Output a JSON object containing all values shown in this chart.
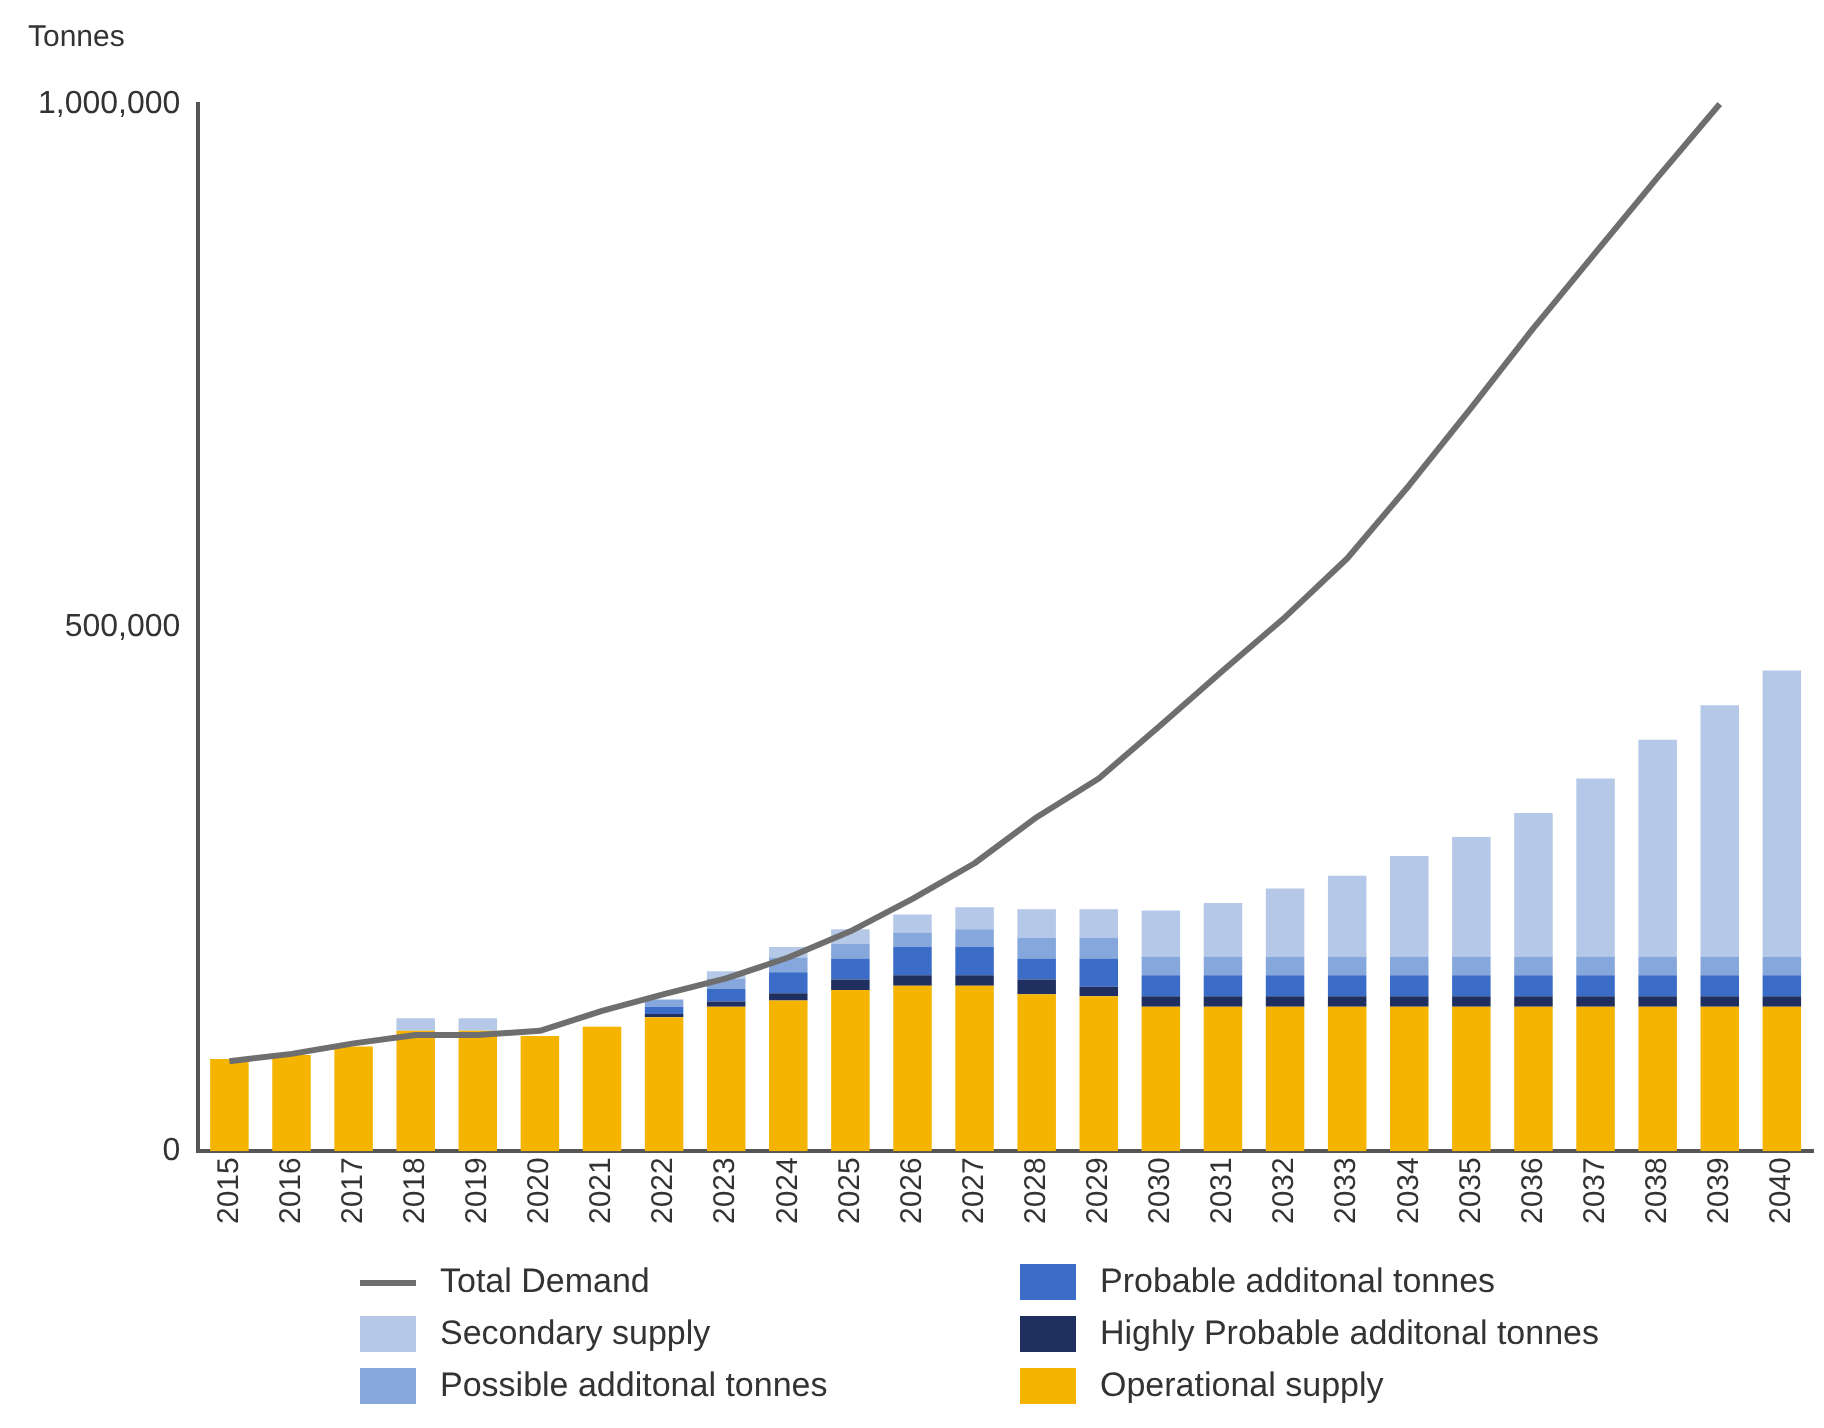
{
  "chart_data": {
    "type": "bar",
    "stacked": true,
    "ylabel": "Tonnes",
    "categories": [
      "2015",
      "2016",
      "2017",
      "2018",
      "2019",
      "2020",
      "2021",
      "2022",
      "2023",
      "2024",
      "2025",
      "2026",
      "2027",
      "2028",
      "2029",
      "2030",
      "2031",
      "2032",
      "2033",
      "2034",
      "2035",
      "2036",
      "2037",
      "2038",
      "2039",
      "2040"
    ],
    "series": [
      {
        "name": "Operational supply",
        "color": "#f5b400",
        "values": [
          88000,
          92000,
          100000,
          115000,
          115000,
          110000,
          119000,
          128000,
          138000,
          144000,
          154000,
          158000,
          158000,
          150000,
          148000,
          138000,
          138000,
          138000,
          138000,
          138000,
          138000,
          138000,
          138000,
          138000,
          138000,
          138000
        ]
      },
      {
        "name": "Highly Probable additonal tonnes",
        "color": "#1f3060",
        "values": [
          0,
          0,
          0,
          0,
          0,
          0,
          0,
          3000,
          5000,
          7000,
          10000,
          10000,
          10000,
          14000,
          9000,
          10000,
          10000,
          10000,
          10000,
          10000,
          10000,
          10000,
          10000,
          10000,
          10000,
          10000
        ]
      },
      {
        "name": "Probable additonal tonnes",
        "color": "#3a6cc8",
        "values": [
          0,
          0,
          0,
          0,
          0,
          0,
          0,
          7000,
          12000,
          20000,
          20000,
          27000,
          27000,
          20000,
          27000,
          20000,
          20000,
          20000,
          20000,
          20000,
          20000,
          20000,
          20000,
          20000,
          20000,
          20000
        ]
      },
      {
        "name": "Possible additonal tonnes",
        "color": "#86a7dc",
        "values": [
          0,
          0,
          0,
          0,
          0,
          0,
          0,
          7000,
          10000,
          14000,
          14000,
          14000,
          17000,
          20000,
          20000,
          18000,
          18000,
          18000,
          18000,
          18000,
          18000,
          18000,
          18000,
          18000,
          18000,
          18000
        ]
      },
      {
        "name": "Secondary supply",
        "color": "#b5c8e8",
        "values": [
          0,
          0,
          0,
          12000,
          12000,
          0,
          null,
          null,
          7000,
          10000,
          14000,
          17000,
          21000,
          27000,
          27000,
          44000,
          51000,
          65000,
          77000,
          96000,
          114000,
          137000,
          170000,
          207000,
          240000,
          273000
        ]
      },
      {
        "name": "Total Demand",
        "type": "line",
        "color": "#6e6e6e",
        "values": [
          86000,
          93000,
          103000,
          111000,
          111000,
          115000,
          134000,
          150000,
          165000,
          185000,
          210000,
          241000,
          275000,
          319000,
          356000,
          407000,
          459000,
          510000,
          566000,
          636000,
          710000,
          786000,
          858000,
          930000,
          1000000,
          null
        ]
      }
    ],
    "ylim": [
      0,
      1000000
    ],
    "yticks": [
      {
        "value": 0,
        "label": "0"
      },
      {
        "value": 500000,
        "label": "500,000"
      },
      {
        "value": 1000000,
        "label": "1,000,000"
      }
    ],
    "grid": false,
    "legend": "bottom",
    "marker": "none"
  }
}
